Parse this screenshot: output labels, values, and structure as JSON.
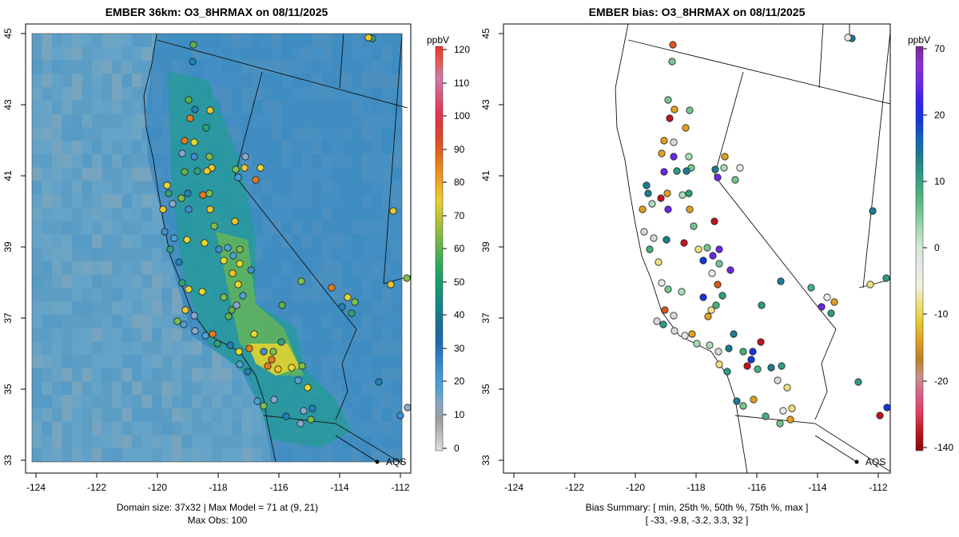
{
  "left_panel": {
    "title": "EMBER 36km: O3_8HRMAX on 08/11/2025",
    "colorbar": {
      "unit": "ppbV",
      "ticks": [
        "120",
        "110",
        "100",
        "90",
        "80",
        "70",
        "60",
        "50",
        "40",
        "30",
        "20",
        "10",
        "0"
      ],
      "colors": [
        "#e0e0e0",
        "#bdbdbd",
        "#9e9e9e",
        "#87a6c4",
        "#4ea3d8",
        "#3e95d2",
        "#2e7fc6",
        "#1c6aaf",
        "#1a6c9c",
        "#157f8b",
        "#12917c",
        "#17a06c",
        "#2fab5c",
        "#5cb24a",
        "#8bbb3e",
        "#bcc433",
        "#e7cf2d",
        "#f0b025",
        "#ec8d1e",
        "#e46a1b",
        "#e04a25",
        "#e33637",
        "#e33a5c",
        "#db5b86",
        "#d07aa6",
        "#e85a52",
        "#f0302a"
      ]
    },
    "footer": {
      "line1": "Domain size: 37x32 | Max Model = 71 at (9, 21)",
      "line2": "Max Obs: 100"
    }
  },
  "right_panel": {
    "title": "EMBER bias: O3_8HRMAX on 08/11/2025",
    "colorbar": {
      "unit": "ppbV",
      "ticks": [
        "70",
        "20",
        "10",
        "0",
        "-10",
        "-20",
        "-140"
      ],
      "colors": [
        "#8b0a0a",
        "#c0141e",
        "#e33a5c",
        "#db5b86",
        "#c98f8a",
        "#c08020",
        "#e0a020",
        "#e8c830",
        "#f0e080",
        "#f2f2e0",
        "#e8e8e8",
        "#d4ead8",
        "#a8dcb4",
        "#74c590",
        "#48b07c",
        "#2f9b84",
        "#1a7d92",
        "#1260b8",
        "#1236e0",
        "#3820f0",
        "#6a28e8",
        "#8c30d4",
        "#7a2890"
      ]
    },
    "footer": {
      "line1": "Bias Summary: [ min, 25th %, 50th %, 75th %, max ]",
      "line2": "[ -33,   -9.8,   -3.2,   3.3,   32 ]"
    }
  },
  "axes": {
    "x_ticks": [
      "-124",
      "-122",
      "-120",
      "-118",
      "-116",
      "-114",
      "-112"
    ],
    "y_ticks": [
      "45",
      "43",
      "41",
      "39",
      "37",
      "35",
      "33"
    ]
  },
  "aqs_label": "AQS"
}
